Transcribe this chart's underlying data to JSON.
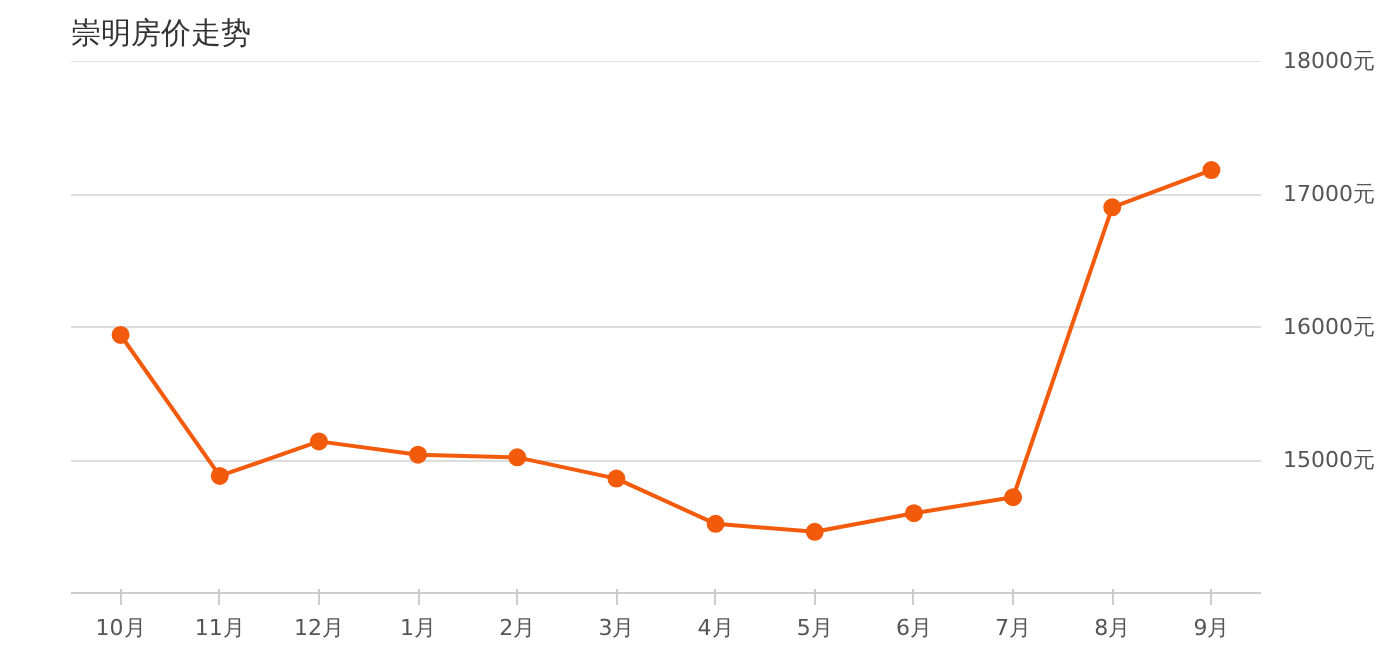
{
  "chart_data": {
    "type": "line",
    "title": "崇明房价走势",
    "categories": [
      "10月",
      "11月",
      "12月",
      "1月",
      "2月",
      "3月",
      "4月",
      "5月",
      "6月",
      "7月",
      "8月",
      "9月"
    ],
    "series": [
      {
        "color": "#f25a0c",
        "values": [
          15940,
          14880,
          15140,
          15040,
          15020,
          14860,
          14520,
          14460,
          14600,
          14720,
          16900,
          17180
        ]
      }
    ],
    "ylim": [
      14000,
      18000
    ],
    "yticks": [
      {
        "value": 15000,
        "label": "15000元"
      },
      {
        "value": 16000,
        "label": "16000元"
      },
      {
        "value": 17000,
        "label": "17000元"
      },
      {
        "value": 18000,
        "label": "18000元"
      }
    ],
    "grid": "y",
    "marker": "circle",
    "line_style": "solid"
  }
}
